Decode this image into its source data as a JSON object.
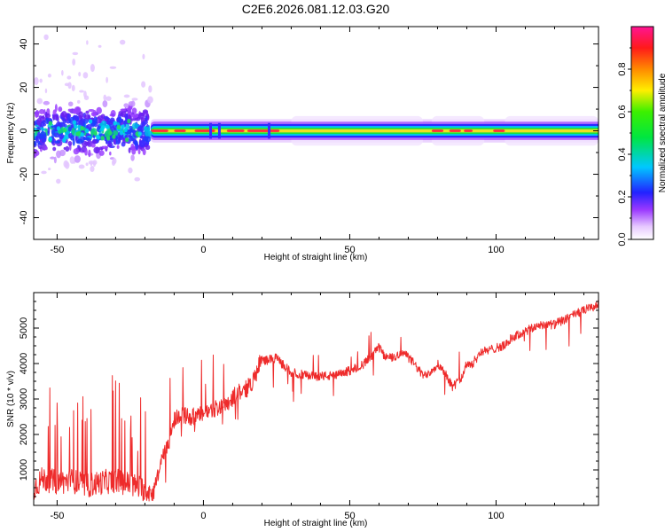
{
  "title": "C2E6.2026.081.12.03.G20",
  "colors": {
    "snr_line": "#ee2b2b",
    "axes": "#000000",
    "background": "#ffffff"
  },
  "chart_data": [
    {
      "type": "heatmap",
      "name": "spectrogram",
      "xlabel": "Height of straight line (km)",
      "ylabel": "Frequency (Hz)",
      "xlim": [
        -58,
        135
      ],
      "ylim": [
        -50,
        48
      ],
      "xticks": [
        -50,
        0,
        50,
        100
      ],
      "xtick_labels": [
        "-50",
        "0",
        "50",
        "100"
      ],
      "yticks": [
        -40,
        -20,
        0,
        20,
        40
      ],
      "ytick_labels": [
        "-40",
        "-20",
        "0",
        "20",
        "40"
      ],
      "colorbar": {
        "label": "Normalized spectral amplitude",
        "range": [
          0,
          1
        ],
        "ticks": [
          0.0,
          0.2,
          0.4,
          0.6,
          0.8
        ],
        "tick_labels": [
          "0.0",
          "0.2",
          "0.4",
          "0.6",
          "0.8"
        ],
        "colormap": "rainbow (white-violet-blue-cyan-green-yellow-red-magenta)"
      },
      "ridge": {
        "description": "Dominant spectral line near 0 Hz; noisy scattered energy below about -18 km, steady narrow ridge above",
        "center_frequency_hz": 0,
        "noisy_segment_km": [
          -58,
          -18
        ],
        "noisy_spread_hz": [
          -28,
          45
        ],
        "steady_segment_km": [
          -18,
          135
        ],
        "steady_halfwidth_hz": 4
      }
    },
    {
      "type": "line",
      "name": "snr",
      "xlabel": "Height of straight line (km)",
      "ylabel": "SNR (10 * v/v)",
      "xlim": [
        -58,
        135
      ],
      "ylim": [
        0,
        6000
      ],
      "xticks": [
        -50,
        0,
        50,
        100
      ],
      "xtick_labels": [
        "-50",
        "0",
        "50",
        "100"
      ],
      "yticks": [
        1000,
        2000,
        3000,
        4000,
        5000
      ],
      "ytick_labels": [
        "1000",
        "2000",
        "3000",
        "4000",
        "5000"
      ],
      "series": [
        {
          "name": "SNR",
          "x": [
            -58,
            -55,
            -50,
            -45,
            -40,
            -35,
            -30,
            -25,
            -20,
            -18,
            -17,
            -15,
            -12,
            -10,
            -8,
            -5,
            -2,
            0,
            3,
            6,
            9,
            12,
            15,
            18,
            19,
            20,
            22,
            25,
            28,
            30,
            33,
            36,
            40,
            45,
            50,
            55,
            60,
            62,
            65,
            68,
            72,
            75,
            78,
            80,
            83,
            85,
            88,
            90,
            92,
            95,
            97,
            100,
            103,
            105,
            110,
            115,
            120,
            125,
            130,
            135
          ],
          "values": [
            500,
            750,
            650,
            700,
            550,
            650,
            700,
            600,
            450,
            400,
            350,
            1100,
            1700,
            2400,
            2600,
            2500,
            2500,
            2600,
            2700,
            2800,
            2950,
            3200,
            3300,
            3650,
            4000,
            4100,
            4100,
            4150,
            3900,
            3750,
            3700,
            3650,
            3650,
            3650,
            3800,
            4000,
            4450,
            4200,
            4150,
            4350,
            4000,
            3650,
            3800,
            4000,
            3700,
            3350,
            3550,
            4000,
            4000,
            4350,
            4350,
            4450,
            4500,
            4700,
            4900,
            5100,
            5100,
            5300,
            5500,
            5650
          ],
          "noise_amplitude_note": "Very spiky below -18 km (spikes to ~3500), moderate noise elsewhere"
        }
      ]
    }
  ]
}
